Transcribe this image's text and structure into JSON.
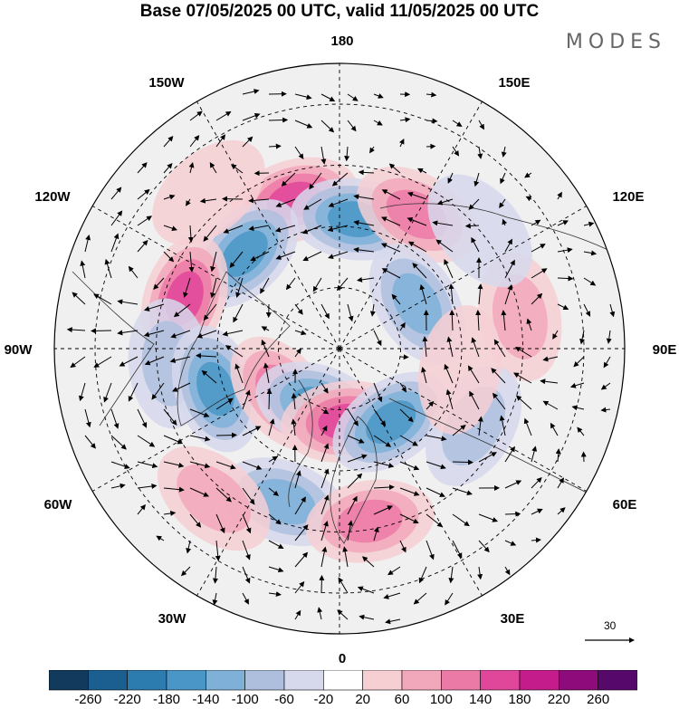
{
  "title": "Base 07/05/2025 00 UTC, valid 11/05/2025 00 UTC",
  "logo": "MODES",
  "longitude_labels": {
    "top": "180",
    "bottom": "0",
    "left": "90W",
    "right": "90E",
    "upper_left_outer": "150W",
    "upper_right_outer": "150E",
    "mid_left_upper": "120W",
    "mid_right_upper": "120E",
    "mid_left_lower": "60W",
    "mid_right_lower": "60E",
    "lower_left": "30W",
    "lower_right": "30E"
  },
  "reference_vector": {
    "label": "30"
  },
  "colorbar": {
    "labels": [
      "-260",
      "-220",
      "-180",
      "-140",
      "-100",
      "-60",
      "-20",
      "20",
      "60",
      "100",
      "140",
      "180",
      "220",
      "260"
    ],
    "colors": [
      "#123a5c",
      "#1a5f8f",
      "#2d7cb0",
      "#4a96c6",
      "#7fb1d8",
      "#aebfdd",
      "#d6d8ec",
      "#ffffff",
      "#f6cfd3",
      "#f2a8bb",
      "#ec7aa6",
      "#e0479a",
      "#c41c8b",
      "#8e0b7c",
      "#57086b"
    ]
  },
  "map": {
    "projection": "north-polar-stereographic",
    "anomalies": [
      {
        "lat": 52,
        "lon": -163,
        "value": 150
      },
      {
        "lat": 58,
        "lon": 173,
        "value": -140
      },
      {
        "lat": 52,
        "lon": 150,
        "value": 120
      },
      {
        "lat": 57,
        "lon": -135,
        "value": -160
      },
      {
        "lat": 50,
        "lon": -108,
        "value": 170
      },
      {
        "lat": 48,
        "lon": -85,
        "value": -80
      },
      {
        "lat": 58,
        "lon": -72,
        "value": -150
      },
      {
        "lat": 72,
        "lon": -52,
        "value": 110
      },
      {
        "lat": 75,
        "lon": -20,
        "value": -150
      },
      {
        "lat": 72,
        "lon": 5,
        "value": 160
      },
      {
        "lat": 68,
        "lon": 35,
        "value": -140
      },
      {
        "lat": 50,
        "lon": -20,
        "value": -130
      },
      {
        "lat": 47,
        "lon": 10,
        "value": 100
      },
      {
        "lat": 42,
        "lon": -40,
        "value": 80
      },
      {
        "lat": 68,
        "lon": 120,
        "value": -110
      },
      {
        "lat": 45,
        "lon": 100,
        "value": 60
      },
      {
        "lat": 52,
        "lon": 60,
        "value": -60
      },
      {
        "lat": 45,
        "lon": 130,
        "value": -50
      },
      {
        "lat": 60,
        "lon": 80,
        "value": 40
      },
      {
        "lat": 40,
        "lon": -140,
        "value": 40
      }
    ]
  }
}
